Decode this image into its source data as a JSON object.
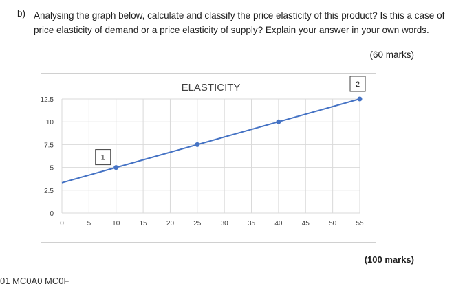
{
  "question": {
    "label": "b)",
    "text": "Analysing the graph below, calculate and classify the price elasticity of this product? Is this a case of price elasticity of demand or a price elasticity of supply? Explain your answer in your own words.",
    "marks": "(60 marks)",
    "footer_marks": "(100 marks)",
    "cutoff_text": "01 MC0A0 MC0F"
  },
  "chart_data": {
    "type": "line",
    "title": "ELASTICITY",
    "x_ticks": [
      "0",
      "5",
      "10",
      "15",
      "20",
      "25",
      "30",
      "35",
      "40",
      "45",
      "50",
      "55"
    ],
    "y_ticks": [
      "0",
      "2.5",
      "5",
      "7.5",
      "10",
      "12.5"
    ],
    "xlim": [
      0,
      55
    ],
    "ylim": [
      0,
      12.5
    ],
    "grid": true,
    "series": [
      {
        "x": [
          0,
          10,
          25,
          40,
          55
        ],
        "y": [
          3.33,
          5,
          7.5,
          10,
          12.5
        ],
        "markers": [
          false,
          true,
          true,
          true,
          true
        ],
        "color": "#4472c4"
      }
    ],
    "annotations": [
      {
        "text": "1",
        "x": 10,
        "y": 5
      },
      {
        "text": "2",
        "x": 55,
        "y": 12.5
      }
    ]
  }
}
